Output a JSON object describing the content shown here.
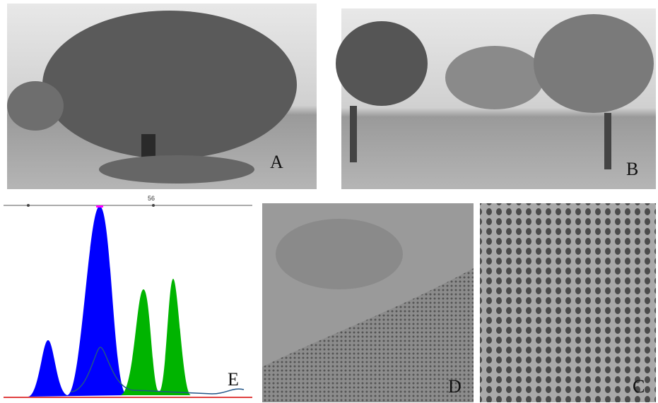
{
  "panels": [
    {
      "label": "A"
    },
    {
      "label": "B"
    },
    {
      "label": "E",
      "tick": "56"
    },
    {
      "label": "D"
    },
    {
      "label": "C"
    }
  ]
}
